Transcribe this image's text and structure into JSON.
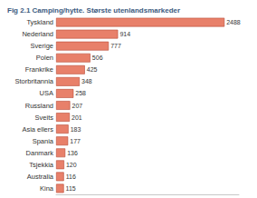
{
  "chart_data": {
    "type": "bar",
    "orientation": "horizontal",
    "title": "Fig 2.1 Camping/hytte. Største utenlandsmarkeder",
    "categories": [
      "Tyskland",
      "Nederland",
      "Sverige",
      "Polen",
      "Frankrike",
      "Storbritannia",
      "USA",
      "Russland",
      "Sveits",
      "Asia ellers",
      "Spania",
      "Danmark",
      "Tsjekkia",
      "Australia",
      "Kina"
    ],
    "values": [
      2488,
      914,
      777,
      506,
      425,
      348,
      258,
      207,
      201,
      183,
      177,
      136,
      120,
      116,
      115
    ],
    "color": "#e8806a",
    "xlim": [
      0,
      2700
    ],
    "data_labels": true,
    "tick_labels": "y",
    "grid": false
  }
}
